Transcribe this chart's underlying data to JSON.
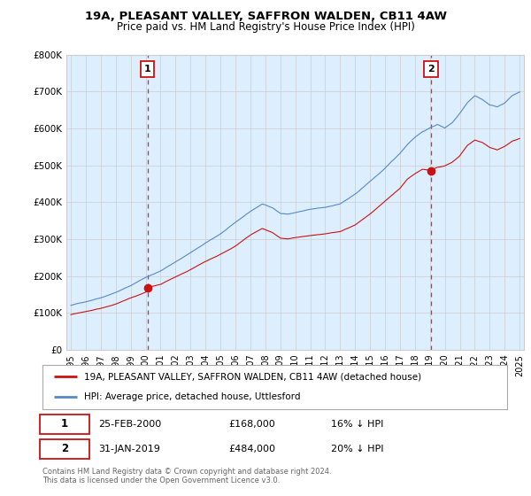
{
  "title1": "19A, PLEASANT VALLEY, SAFFRON WALDEN, CB11 4AW",
  "title2": "Price paid vs. HM Land Registry's House Price Index (HPI)",
  "ylabel_ticks": [
    "£0",
    "£100K",
    "£200K",
    "£300K",
    "£400K",
    "£500K",
    "£600K",
    "£700K",
    "£800K"
  ],
  "ytick_values": [
    0,
    100000,
    200000,
    300000,
    400000,
    500000,
    600000,
    700000,
    800000
  ],
  "ylim": [
    0,
    800000
  ],
  "xlim_start": 1994.7,
  "xlim_end": 2025.3,
  "xticks": [
    1995,
    1996,
    1997,
    1998,
    1999,
    2000,
    2001,
    2002,
    2003,
    2004,
    2005,
    2006,
    2007,
    2008,
    2009,
    2010,
    2011,
    2012,
    2013,
    2014,
    2015,
    2016,
    2017,
    2018,
    2019,
    2020,
    2021,
    2022,
    2023,
    2024,
    2025
  ],
  "hpi_color": "#5588cc",
  "hpi_fill_color": "#ddeeff",
  "price_color": "#cc1111",
  "vline_color": "#cc1111",
  "sale1_x": 2000.12,
  "sale1_y": 168000,
  "sale2_x": 2019.08,
  "sale2_y": 484000,
  "legend1": "19A, PLEASANT VALLEY, SAFFRON WALDEN, CB11 4AW (detached house)",
  "legend2": "HPI: Average price, detached house, Uttlesford",
  "table_row1": [
    "1",
    "25-FEB-2000",
    "£168,000",
    "16% ↓ HPI"
  ],
  "table_row2": [
    "2",
    "31-JAN-2019",
    "£484,000",
    "20% ↓ HPI"
  ],
  "footer": "Contains HM Land Registry data © Crown copyright and database right 2024.\nThis data is licensed under the Open Government Licence v3.0.",
  "bg_color": "#ffffff",
  "grid_color": "#cccccc"
}
